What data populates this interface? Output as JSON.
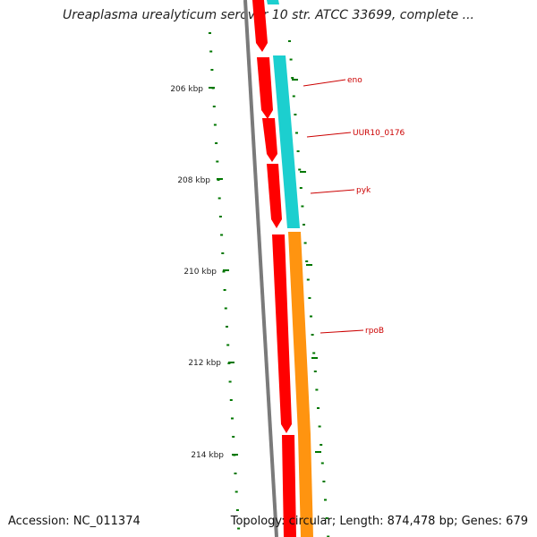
{
  "title": "Ureaplasma urealyticum serovar 10 str. ATCC 33699, complete ...",
  "footer": {
    "accession": "Accession: NC_011374",
    "topology": "Topology: circular; Length: 874,478 bp; Genes: 679"
  },
  "colors": {
    "backbone": "#7a7a7a",
    "forward_cds": "#ff0000",
    "gene": "#1ccfcf",
    "gene_alt": "#ff9410",
    "ticks": "#007700",
    "labels": "#cc0000",
    "ruler_text": "#222222"
  },
  "ruler": [
    {
      "position_kbp": 206,
      "label": "206 kbp"
    },
    {
      "position_kbp": 208,
      "label": "208 kbp"
    },
    {
      "position_kbp": 210,
      "label": "210 kbp"
    },
    {
      "position_kbp": 212,
      "label": "212 kbp"
    },
    {
      "position_kbp": 214,
      "label": "214 kbp"
    }
  ],
  "gene_labels": [
    "eno",
    "UUR10_0176",
    "pyk",
    "rpoB"
  ]
}
